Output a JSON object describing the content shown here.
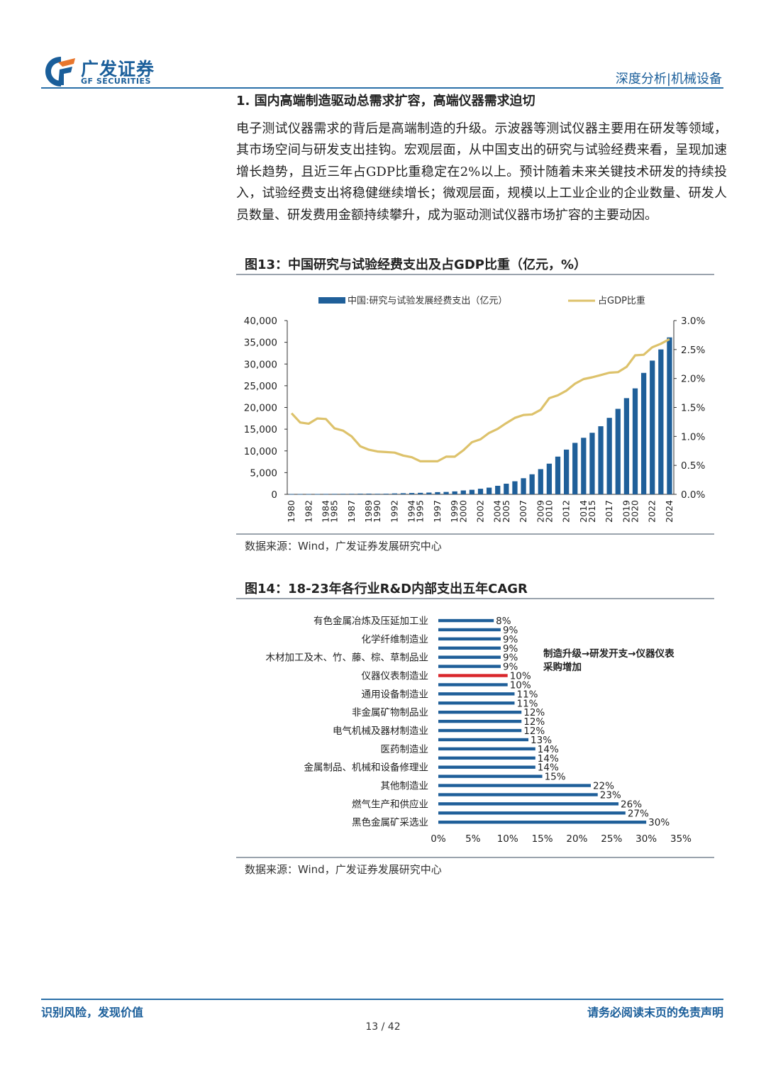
{
  "header": {
    "logo_cn": "广发证券",
    "logo_en": "GF SECURITIES",
    "right": "深度分析|机械设备",
    "brand_color": "#1a5e9a",
    "accent_color": "#e8762d"
  },
  "section": {
    "title": "1.  国内高端制造驱动总需求扩容，高端仪器需求迫切",
    "paragraph": "电子测试仪器需求的背后是高端制造的升级。示波器等测试仪器主要用在研发等领域，其市场空间与研发支出挂钩。宏观层面，从中国支出的研究与试验经费来看，呈现加速增长趋势，且近三年占GDP比重稳定在2%以上。预计随着未来关键技术研发的持续投入，试验经费支出将稳健继续增长；微观层面，规模以上工业企业的企业数量、研发人员数量、研发费用金额持续攀升，成为驱动测试仪器市场扩容的主要动因。"
  },
  "figure13": {
    "title": "图13：中国研究与试验经费支出及占GDP比重（亿元，%）",
    "source": "数据来源：Wind，广发证券发展研究中心"
  },
  "figure14": {
    "title": "图14：18-23年各行业R&D内部支出五年CAGR",
    "source": "数据来源：Wind，广发证券发展研究中心"
  },
  "chart_data": [
    {
      "type": "bar+line",
      "title": "图13：中国研究与试验经费支出及占GDP比重（亿元，%）",
      "years": [
        1980,
        1981,
        1982,
        1983,
        1984,
        1985,
        1986,
        1987,
        1988,
        1989,
        1990,
        1991,
        1992,
        1993,
        1994,
        1995,
        1996,
        1997,
        1998,
        1999,
        2000,
        2001,
        2002,
        2003,
        2004,
        2005,
        2006,
        2007,
        2008,
        2009,
        2010,
        2011,
        2012,
        2013,
        2014,
        2015,
        2016,
        2017,
        2018,
        2019,
        2020,
        2021,
        2022,
        2023,
        2024
      ],
      "x_tick_labels": [
        "1980",
        "1982",
        "1984",
        "1985",
        "1987",
        "1989",
        "1990",
        "1992",
        "1994",
        "1995",
        "1997",
        "1999",
        "2000",
        "2002",
        "2004",
        "2005",
        "2007",
        "2009",
        "2010",
        "2012",
        "2014",
        "2015",
        "2017",
        "2019",
        "2020",
        "2022",
        "2024"
      ],
      "series": [
        {
          "name": "中国:研究与试验发展经费支出（亿元）",
          "type": "bar",
          "axis": "left",
          "color": "#1f5f99",
          "values": [
            64,
            67,
            73,
            80,
            94,
            103,
            113,
            120,
            144,
            159,
            125,
            143,
            210,
            256,
            309,
            349,
            404,
            509,
            551,
            679,
            896,
            1043,
            1288,
            1540,
            1966,
            2450,
            3003,
            3710,
            4616,
            5802,
            7063,
            8687,
            10298,
            11847,
            13016,
            14170,
            15677,
            17606,
            19678,
            22144,
            24393,
            27956,
            30783,
            33357,
            36130
          ]
        },
        {
          "name": "占GDP比重",
          "type": "line",
          "axis": "right",
          "color": "#ddc26b",
          "values": [
            1.4,
            1.24,
            1.22,
            1.31,
            1.3,
            1.14,
            1.1,
            1.0,
            0.83,
            0.77,
            0.74,
            0.73,
            0.72,
            0.67,
            0.64,
            0.57,
            0.57,
            0.57,
            0.65,
            0.65,
            0.76,
            0.9,
            0.95,
            1.06,
            1.13,
            1.23,
            1.32,
            1.37,
            1.38,
            1.46,
            1.66,
            1.71,
            1.79,
            1.91,
            1.99,
            2.02,
            2.06,
            2.1,
            2.11,
            2.2,
            2.4,
            2.41,
            2.54,
            2.6,
            2.68
          ]
        }
      ],
      "y_left": {
        "min": 0,
        "max": 40000,
        "ticks": [
          "0",
          "5,000",
          "10,000",
          "15,000",
          "20,000",
          "25,000",
          "30,000",
          "35,000",
          "40,000"
        ]
      },
      "y_right": {
        "min": 0,
        "max": 3.0,
        "ticks": [
          "0.0%",
          "0.5%",
          "1.0%",
          "1.5%",
          "2.0%",
          "2.5%",
          "3.0%"
        ]
      },
      "legend": [
        {
          "label": "中国:研究与试验发展经费支出（亿元）",
          "kind": "bar",
          "color": "#1f5f99"
        },
        {
          "label": "占GDP比重",
          "kind": "line",
          "color": "#ddc26b"
        }
      ],
      "legend_position": "top"
    },
    {
      "type": "bar",
      "orientation": "horizontal",
      "title": "图14：18-23年各行业R&D内部支出五年CAGR",
      "categories_labeled": [
        "有色金属冶炼及压延加工业",
        "",
        "化学纤维制造业",
        "",
        "木材加工及木、竹、藤、棕、草制品业",
        "",
        "仪器仪表制造业",
        "",
        "通用设备制造业",
        "",
        "非金属矿物制品业",
        "",
        "电气机械及器材制造业",
        "",
        "医药制造业",
        "",
        "金属制品、机械和设备修理业",
        "",
        "其他制造业",
        "",
        "燃气生产和供应业",
        "",
        "黑色金属矿采选业"
      ],
      "values": [
        8,
        9,
        9,
        9,
        9,
        9,
        10,
        10,
        11,
        11,
        12,
        12,
        12,
        13,
        14,
        14,
        14,
        15,
        22,
        23,
        26,
        27,
        30
      ],
      "value_labels": [
        "8%",
        "9%",
        "9%",
        "9%",
        "9%",
        "9%",
        "10%",
        "10%",
        "11%",
        "11%",
        "12%",
        "12%",
        "12%",
        "13%",
        "14%",
        "14%",
        "14%",
        "15%",
        "22%",
        "23%",
        "26%",
        "27%",
        "30%"
      ],
      "highlight_index": 6,
      "bar_color": "#1f5f99",
      "highlight_color": "#d9262b",
      "x_ticks": [
        "0%",
        "5%",
        "10%",
        "15%",
        "20%",
        "25%",
        "30%",
        "35%"
      ],
      "xlim": [
        0,
        35
      ],
      "annotation": [
        "制造升级→研发开支→仪器仪表",
        "采购增加"
      ]
    }
  ],
  "footer": {
    "left": "识别风险，发现价值",
    "right": "请务必阅读末页的免责声明",
    "page": "13 / 42"
  }
}
